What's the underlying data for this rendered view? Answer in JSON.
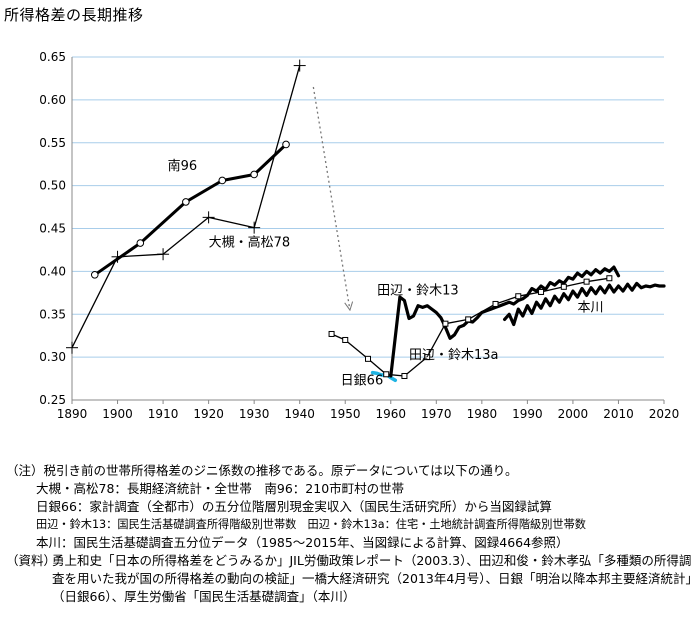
{
  "page": {
    "title": "所得格差の長期推移"
  },
  "chart_data": {
    "type": "line",
    "title": "所得格差の長期推移",
    "xlabel": "",
    "ylabel": "",
    "xlim": [
      1890,
      2020
    ],
    "ylim": [
      0.25,
      0.65
    ],
    "x_ticks": [
      "1890",
      "1900",
      "1910",
      "1920",
      "1930",
      "1940",
      "1950",
      "1960",
      "1970",
      "1980",
      "1990",
      "2000",
      "2010",
      "2020"
    ],
    "y_ticks": [
      "0.25",
      "0.30",
      "0.35",
      "0.40",
      "0.45",
      "0.50",
      "0.55",
      "0.60",
      "0.65"
    ],
    "grid": "horizontal",
    "series": [
      {
        "name": "南96",
        "color": "#000000",
        "marker": "circle",
        "points": [
          [
            1895,
            0.396
          ],
          [
            1905,
            0.433
          ],
          [
            1915,
            0.481
          ],
          [
            1923,
            0.506
          ],
          [
            1930,
            0.513
          ],
          [
            1937,
            0.548
          ]
        ]
      },
      {
        "name": "大槻・高松78",
        "color": "#000000",
        "marker": "plus",
        "points": [
          [
            1890,
            0.311
          ],
          [
            1900,
            0.417
          ],
          [
            1910,
            0.42
          ],
          [
            1920,
            0.463
          ],
          [
            1930,
            0.451
          ],
          [
            1940,
            0.64
          ]
        ]
      },
      {
        "name": "日銀66",
        "color": "#1fb4e3",
        "marker": "none",
        "points": [
          [
            1956,
            0.282
          ],
          [
            1957,
            0.281
          ],
          [
            1958,
            0.279
          ],
          [
            1959,
            0.28
          ],
          [
            1960,
            0.276
          ],
          [
            1961,
            0.273
          ]
        ]
      },
      {
        "name": "田辺・鈴木13",
        "color": "#000000",
        "marker": "none",
        "points": [
          [
            1960,
            0.278
          ],
          [
            1962,
            0.37
          ],
          [
            1963,
            0.366
          ],
          [
            1964,
            0.345
          ],
          [
            1965,
            0.348
          ],
          [
            1966,
            0.36
          ],
          [
            1967,
            0.358
          ],
          [
            1968,
            0.36
          ],
          [
            1969,
            0.356
          ],
          [
            1970,
            0.352
          ],
          [
            1971,
            0.346
          ],
          [
            1972,
            0.335
          ],
          [
            1973,
            0.322
          ],
          [
            1974,
            0.326
          ],
          [
            1975,
            0.335
          ],
          [
            1976,
            0.337
          ],
          [
            1977,
            0.342
          ],
          [
            1978,
            0.341
          ],
          [
            1979,
            0.346
          ],
          [
            1980,
            0.352
          ],
          [
            1981,
            0.354
          ],
          [
            1982,
            0.356
          ],
          [
            1983,
            0.358
          ],
          [
            1984,
            0.36
          ],
          [
            1985,
            0.362
          ],
          [
            1986,
            0.364
          ],
          [
            1987,
            0.362
          ],
          [
            1988,
            0.366
          ],
          [
            1989,
            0.368
          ],
          [
            1990,
            0.372
          ],
          [
            1991,
            0.38
          ],
          [
            1992,
            0.377
          ],
          [
            1993,
            0.383
          ],
          [
            1994,
            0.379
          ],
          [
            1995,
            0.387
          ],
          [
            1996,
            0.384
          ],
          [
            1997,
            0.389
          ],
          [
            1998,
            0.386
          ],
          [
            1999,
            0.393
          ],
          [
            2000,
            0.391
          ],
          [
            2001,
            0.398
          ],
          [
            2002,
            0.394
          ],
          [
            2003,
            0.4
          ],
          [
            2004,
            0.396
          ],
          [
            2005,
            0.402
          ],
          [
            2006,
            0.398
          ],
          [
            2007,
            0.403
          ],
          [
            2008,
            0.4
          ],
          [
            2009,
            0.405
          ],
          [
            2010,
            0.395
          ]
        ]
      },
      {
        "name": "田辺・鈴木13a",
        "color": "#000000",
        "marker": "square",
        "points": [
          [
            1947,
            0.327
          ],
          [
            1950,
            0.32
          ],
          [
            1955,
            0.298
          ],
          [
            1959,
            0.28
          ],
          [
            1963,
            0.278
          ],
          [
            1968,
            0.3
          ],
          [
            1972,
            0.339
          ],
          [
            1977,
            0.344
          ],
          [
            1983,
            0.362
          ],
          [
            1988,
            0.371
          ],
          [
            1993,
            0.376
          ],
          [
            1998,
            0.382
          ],
          [
            2003,
            0.388
          ],
          [
            2008,
            0.392
          ]
        ]
      },
      {
        "name": "本川",
        "color": "#000000",
        "marker": "none",
        "points": [
          [
            1985,
            0.344
          ],
          [
            1986,
            0.35
          ],
          [
            1987,
            0.338
          ],
          [
            1988,
            0.356
          ],
          [
            1989,
            0.348
          ],
          [
            1990,
            0.36
          ],
          [
            1991,
            0.351
          ],
          [
            1992,
            0.364
          ],
          [
            1993,
            0.357
          ],
          [
            1994,
            0.368
          ],
          [
            1995,
            0.36
          ],
          [
            1996,
            0.371
          ],
          [
            1997,
            0.364
          ],
          [
            1998,
            0.374
          ],
          [
            1999,
            0.367
          ],
          [
            2000,
            0.377
          ],
          [
            2001,
            0.37
          ],
          [
            2002,
            0.38
          ],
          [
            2003,
            0.372
          ],
          [
            2004,
            0.381
          ],
          [
            2005,
            0.374
          ],
          [
            2006,
            0.382
          ],
          [
            2007,
            0.375
          ],
          [
            2008,
            0.384
          ],
          [
            2009,
            0.376
          ],
          [
            2010,
            0.383
          ],
          [
            2011,
            0.377
          ],
          [
            2012,
            0.385
          ],
          [
            2013,
            0.378
          ],
          [
            2014,
            0.386
          ],
          [
            2015,
            0.381
          ],
          [
            2016,
            0.383
          ],
          [
            2017,
            0.382
          ],
          [
            2018,
            0.384
          ],
          [
            2019,
            0.383
          ],
          [
            2020,
            0.383
          ]
        ]
      }
    ],
    "annotations": [
      {
        "text": "南96",
        "x": 1911,
        "y": 0.518
      },
      {
        "text": "大槻・高松78",
        "x": 1920,
        "y": 0.429
      },
      {
        "text": "田辺・鈴木13",
        "x": 1957,
        "y": 0.373
      },
      {
        "text": "本川",
        "x": 2001,
        "y": 0.353
      },
      {
        "text": "田辺・鈴木13a",
        "x": 1964,
        "y": 0.298
      },
      {
        "text": "日銀66",
        "x": 1949,
        "y": 0.268
      }
    ],
    "arrow": {
      "from": [
        1943,
        0.615
      ],
      "to": [
        1951,
        0.356
      ],
      "style": "dotted"
    }
  },
  "notes": {
    "line1": "（注）税引き前の世帯所得格差のジニ係数の推移である。原データについては以下の通り。",
    "line2": "大槻・高松78：長期経済統計・全世帯　南96：210市町村の世帯",
    "line3": "日銀66：家計調査（全都市）の五分位階層別現金実収入（国民生活研究所）から当図録試算",
    "line4": "田辺・鈴木13：国民生活基礎調査所得階級別世帯数　田辺・鈴木13a：住宅・土地統計調査所得階級別世帯数",
    "line5": "本川：国民生活基礎調査五分位データ（1985～2015年、当図録による計算、図録4664参照）",
    "source_label": "（資料）",
    "source_text": "勇上和史「日本の所得格差をどうみるか」JIL労働政策レポート（2003.3）、田辺和俊・鈴木孝弘「多種類の所得調査を用いた我が国の所得格差の動向の検証」一橋大経済研究（2013年4月号）、日銀「明治以降本邦主要経済統計」（日銀66）、厚生労働省「国民生活基礎調査」（本川）"
  }
}
